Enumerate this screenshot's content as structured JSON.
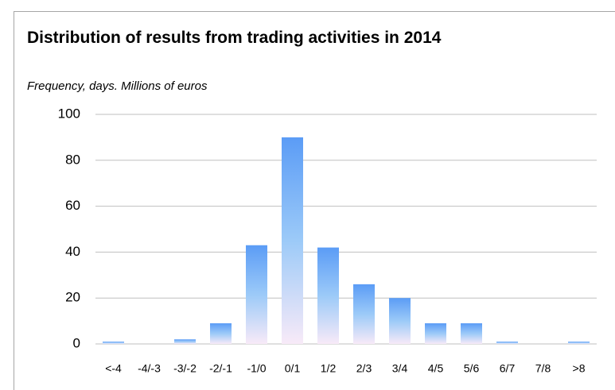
{
  "chart_data": {
    "type": "bar",
    "title": "Distribution of results from trading activities in 2014",
    "subtitle": "Frequency, days. Millions of euros",
    "categories": [
      "<-4",
      "-4/-3",
      "-3/-2",
      "-2/-1",
      "-1/0",
      "0/1",
      "1/2",
      "2/3",
      "3/4",
      "4/5",
      "5/6",
      "6/7",
      "7/8",
      ">8"
    ],
    "values": [
      1,
      0,
      2,
      9,
      43,
      90,
      42,
      26,
      20,
      9,
      9,
      1,
      0,
      1
    ],
    "color": "#5b9cf6",
    "ylim": [
      0,
      100
    ],
    "yticks": [
      0,
      20,
      40,
      60,
      80,
      100
    ],
    "grid": true
  }
}
